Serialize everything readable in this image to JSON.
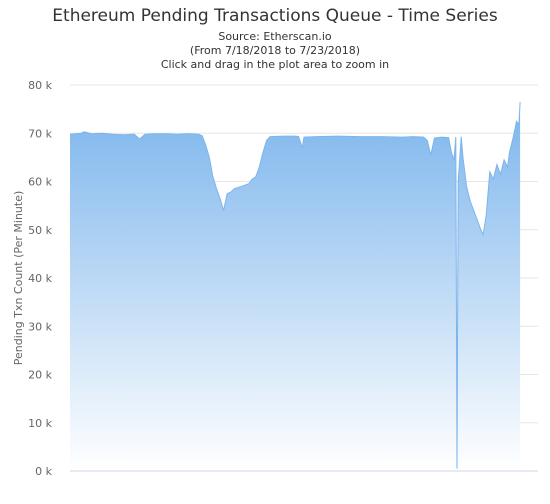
{
  "chart_data": {
    "type": "area",
    "title": "Ethereum Pending Transactions Queue - Time Series",
    "subtitles": [
      "Source: Etherscan.io",
      "(From 7/18/2018 to 7/23/2018)",
      "Click and drag in the plot area to zoom in"
    ],
    "xlabel": "",
    "ylabel": "Pending Txn Count (Per Minute)",
    "ylim": [
      0,
      80000
    ],
    "yticks": [
      0,
      10000,
      20000,
      30000,
      40000,
      50000,
      60000,
      70000,
      80000
    ],
    "ytick_labels": [
      "0 k",
      "10 k",
      "20 k",
      "30 k",
      "40 k",
      "50 k",
      "60 k",
      "70 k",
      "80 k"
    ],
    "xlim": [
      "2018-07-18T00:00",
      "2018-07-23T11:00"
    ],
    "grid": true,
    "legend": "none",
    "colors": {
      "fill_top": "#7cb5ec",
      "fill_bottom": "#ffffff",
      "line": "#7cb5ec",
      "grid": "#e6e6e6"
    },
    "series": [
      {
        "points": [
          [
            "2018-07-18T00:00",
            69800
          ],
          [
            "2018-07-18T03:00",
            70000
          ],
          [
            "2018-07-18T04:00",
            70300
          ],
          [
            "2018-07-18T06:00",
            69900
          ],
          [
            "2018-07-18T09:00",
            70000
          ],
          [
            "2018-07-18T12:00",
            69800
          ],
          [
            "2018-07-18T15:00",
            69700
          ],
          [
            "2018-07-18T18:00",
            69800
          ],
          [
            "2018-07-18T19:30",
            68800
          ],
          [
            "2018-07-18T21:00",
            69800
          ],
          [
            "2018-07-19T00:00",
            69900
          ],
          [
            "2018-07-19T03:00",
            69900
          ],
          [
            "2018-07-19T06:00",
            69800
          ],
          [
            "2018-07-19T09:00",
            69900
          ],
          [
            "2018-07-19T12:00",
            69800
          ],
          [
            "2018-07-19T13:00",
            69500
          ],
          [
            "2018-07-19T14:00",
            67500
          ],
          [
            "2018-07-19T15:00",
            65000
          ],
          [
            "2018-07-19T16:00",
            61000
          ],
          [
            "2018-07-19T17:00",
            58500
          ],
          [
            "2018-07-19T18:00",
            56500
          ],
          [
            "2018-07-19T19:00",
            54000
          ],
          [
            "2018-07-19T20:00",
            57500
          ],
          [
            "2018-07-19T21:00",
            57800
          ],
          [
            "2018-07-19T22:00",
            58500
          ],
          [
            "2018-07-20T00:00",
            59000
          ],
          [
            "2018-07-20T02:00",
            59500
          ],
          [
            "2018-07-20T03:00",
            60500
          ],
          [
            "2018-07-20T04:00",
            61000
          ],
          [
            "2018-07-20T05:00",
            63000
          ],
          [
            "2018-07-20T06:00",
            66000
          ],
          [
            "2018-07-20T07:00",
            68500
          ],
          [
            "2018-07-20T08:00",
            69300
          ],
          [
            "2018-07-20T12:00",
            69400
          ],
          [
            "2018-07-20T15:00",
            69400
          ],
          [
            "2018-07-20T16:00",
            69300
          ],
          [
            "2018-07-20T17:00",
            67000
          ],
          [
            "2018-07-20T17:30",
            69200
          ],
          [
            "2018-07-20T21:00",
            69300
          ],
          [
            "2018-07-21T03:00",
            69400
          ],
          [
            "2018-07-21T09:00",
            69300
          ],
          [
            "2018-07-21T15:00",
            69300
          ],
          [
            "2018-07-21T21:00",
            69200
          ],
          [
            "2018-07-22T00:00",
            69300
          ],
          [
            "2018-07-22T03:00",
            69200
          ],
          [
            "2018-07-22T04:00",
            68500
          ],
          [
            "2018-07-22T05:00",
            65500
          ],
          [
            "2018-07-22T06:00",
            69000
          ],
          [
            "2018-07-22T08:00",
            69200
          ],
          [
            "2018-07-22T10:00",
            69100
          ],
          [
            "2018-07-22T10:45",
            66000
          ],
          [
            "2018-07-22T11:30",
            64500
          ],
          [
            "2018-07-22T12:00",
            69200
          ],
          [
            "2018-07-22T12:20",
            500
          ],
          [
            "2018-07-22T12:40",
            60000
          ],
          [
            "2018-07-22T13:30",
            69300
          ],
          [
            "2018-07-22T14:00",
            65000
          ],
          [
            "2018-07-22T15:00",
            59000
          ],
          [
            "2018-07-22T16:00",
            56000
          ],
          [
            "2018-07-22T17:00",
            54000
          ],
          [
            "2018-07-22T18:00",
            52000
          ],
          [
            "2018-07-22T19:00",
            50000
          ],
          [
            "2018-07-22T19:40",
            49000
          ],
          [
            "2018-07-22T20:30",
            53000
          ],
          [
            "2018-07-22T21:30",
            62000
          ],
          [
            "2018-07-22T22:30",
            60500
          ],
          [
            "2018-07-22T23:30",
            63500
          ],
          [
            "2018-07-23T00:30",
            61500
          ],
          [
            "2018-07-23T01:30",
            64500
          ],
          [
            "2018-07-23T02:30",
            63000
          ],
          [
            "2018-07-23T03:00",
            66000
          ],
          [
            "2018-07-23T04:00",
            69000
          ],
          [
            "2018-07-23T05:00",
            72500
          ],
          [
            "2018-07-23T05:40",
            71800
          ],
          [
            "2018-07-23T06:00",
            76500
          ]
        ]
      }
    ]
  }
}
